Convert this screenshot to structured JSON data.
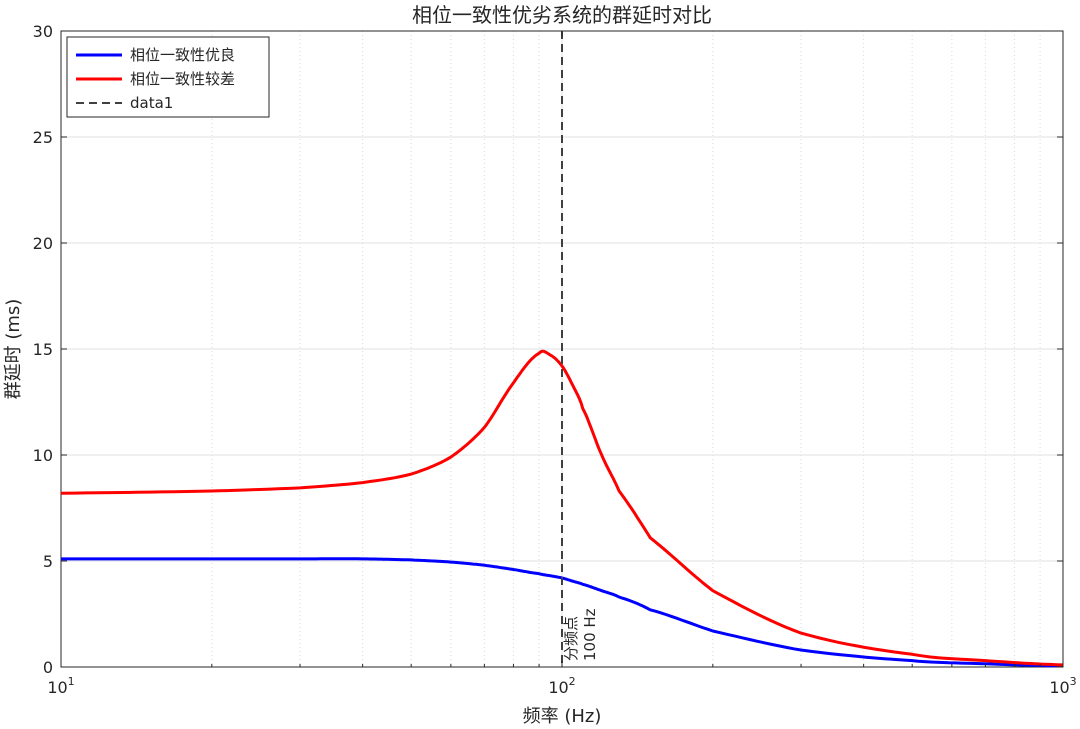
{
  "chart_data": {
    "type": "line",
    "title": "相位一致性优劣系统的群延时对比",
    "xlabel": "频率 (Hz)",
    "ylabel": "群延时 (ms)",
    "xscale": "log",
    "xlim": [
      10,
      1000
    ],
    "ylim": [
      0,
      30
    ],
    "x_ticks": [
      10,
      100,
      1000
    ],
    "x_tick_labels": [
      {
        "base": "10",
        "exp": "1"
      },
      {
        "base": "10",
        "exp": "2"
      },
      {
        "base": "10",
        "exp": "3"
      }
    ],
    "y_ticks": [
      0,
      5,
      10,
      15,
      20,
      25,
      30
    ],
    "y_tick_labels": [
      "0",
      "5",
      "10",
      "15",
      "20",
      "25",
      "30"
    ],
    "grid": true,
    "legend_position": "top-left",
    "x": [
      10,
      20,
      30,
      40,
      50,
      60,
      70,
      80,
      90,
      95,
      100,
      105,
      110,
      120,
      130,
      150,
      200,
      300,
      500,
      700,
      1000
    ],
    "series": [
      {
        "name": "相位一致性优良",
        "color": "#0000ff",
        "style": "solid",
        "values": [
          5.1,
          5.1,
          5.1,
          5.1,
          5.05,
          4.95,
          4.8,
          4.6,
          4.4,
          4.3,
          4.2,
          4.05,
          3.9,
          3.6,
          3.3,
          2.7,
          1.7,
          0.8,
          0.3,
          0.15,
          0.05
        ]
      },
      {
        "name": "相位一致性较差",
        "color": "#ff0000",
        "style": "solid",
        "values": [
          8.2,
          8.3,
          8.45,
          8.7,
          9.1,
          9.9,
          11.3,
          13.4,
          14.8,
          14.7,
          14.2,
          13.3,
          12.2,
          10.0,
          8.3,
          6.1,
          3.6,
          1.6,
          0.6,
          0.3,
          0.1
        ]
      },
      {
        "name": "data1",
        "color": "#404040",
        "style": "dashed",
        "type": "vline",
        "x": 100
      }
    ],
    "annotations": [
      {
        "text": "分频点",
        "x": 100,
        "y": 0
      },
      {
        "text": "100 Hz",
        "x": 100,
        "y": 0
      }
    ]
  }
}
